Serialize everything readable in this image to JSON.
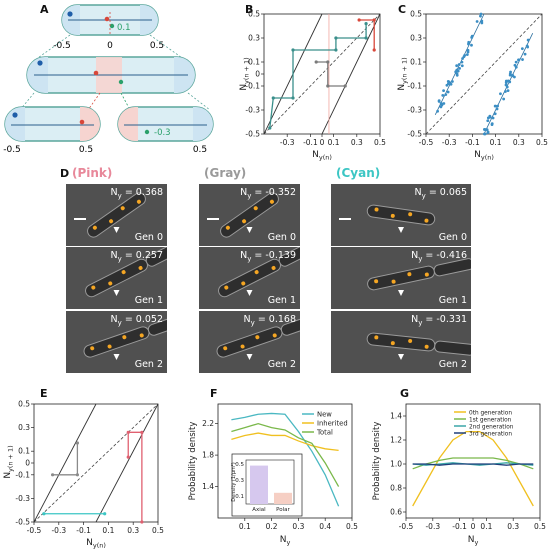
{
  "panel_labels": {
    "A": "A",
    "B": "B",
    "C": "C",
    "D": "D",
    "E": "E",
    "F": "F",
    "G": "G"
  },
  "panel_A": {
    "top_ticks": [
      "-0.5",
      "0",
      "0.5"
    ],
    "top_value": "0.1",
    "bottom_left_ticks": [
      "-0.5",
      "0.5"
    ],
    "bottom_right_ticks": [
      "0.5"
    ],
    "bottom_right_value": "-0.3",
    "colors": {
      "cell_fill": "#dbeef4",
      "cell_edge": "#5aa69b",
      "pole_blue": "#cde4f2",
      "pole_red": "#f6d4d0",
      "mark_blue": "#1f5ea8",
      "mark_red": "#d8473a",
      "mark_green": "#2aa06a"
    }
  },
  "chart_B": {
    "type": "line",
    "xlabel_main": "N",
    "xlabel_sub": "y(n)",
    "ylabel_main": "N",
    "ylabel_sub": "y(n + 1)",
    "xlim": [
      -0.5,
      0.5
    ],
    "ylim": [
      -0.5,
      0.5
    ],
    "x_ticks": [
      "-0.3",
      "-0.1",
      "0",
      "0.1",
      "0.3",
      "0.5"
    ],
    "y_ticks": [
      "-0.5",
      "-0.3",
      "-0.1",
      "0",
      "0.1",
      "0.3",
      "0.5"
    ],
    "series": [
      {
        "color": "#3a8f8b",
        "points": [
          [
            -0.45,
            -0.45
          ],
          [
            -0.42,
            -0.2
          ],
          [
            -0.25,
            -0.2
          ],
          [
            -0.25,
            0.2
          ],
          [
            0.12,
            0.2
          ],
          [
            0.12,
            0.3
          ],
          [
            0.38,
            0.3
          ],
          [
            0.38,
            0.42
          ]
        ]
      },
      {
        "color": "#d8473a",
        "points": [
          [
            0.32,
            0.45
          ],
          [
            0.45,
            0.45
          ],
          [
            0.45,
            0.2
          ]
        ]
      },
      {
        "color": "#7a7a7a",
        "points": [
          [
            -0.05,
            0.1
          ],
          [
            0.05,
            0.1
          ],
          [
            0.05,
            -0.1
          ],
          [
            0.2,
            -0.1
          ]
        ]
      }
    ]
  },
  "chart_C": {
    "type": "scatter",
    "xlabel_main": "N",
    "xlabel_sub": "y(n)",
    "ylabel_main": "N",
    "ylabel_sub": "y(n + 1)",
    "xlim": [
      -0.5,
      0.5
    ],
    "ylim": [
      -0.5,
      0.5
    ],
    "x_ticks": [
      "-0.5",
      "-0.3",
      "-0.1",
      "0.1",
      "0.3",
      "0.5"
    ],
    "y_ticks": [
      "-0.5",
      "-0.3",
      "-0.1",
      "0.1",
      "0.3",
      "0.5"
    ],
    "color": "#3b8ec4",
    "clusters": [
      {
        "x_from": -0.42,
        "x_to": 0.0,
        "slope": 2,
        "offset": 0.5,
        "n": 45
      },
      {
        "x_from": 0.0,
        "x_to": 0.42,
        "slope": 2,
        "offset": -0.5,
        "n": 45
      }
    ]
  },
  "panel_D": {
    "headers": [
      {
        "text": "(Pink)",
        "color": "#e8889a"
      },
      {
        "text": "(Gray)",
        "color": "#9a9a9a"
      },
      {
        "text": "(Cyan)",
        "color": "#3cc6c4"
      }
    ],
    "columns": [
      {
        "rows": [
          {
            "ny": "N",
            "sub": "y",
            "val": " = 0.368",
            "gen": "Gen 0"
          },
          {
            "ny": "N",
            "sub": "y",
            "val": " = 0.257",
            "gen": "Gen 1"
          },
          {
            "ny": "N",
            "sub": "y",
            "val": " = 0.052",
            "gen": "Gen 2"
          }
        ]
      },
      {
        "rows": [
          {
            "ny": "N",
            "sub": "y",
            "val": " = -0.352",
            "gen": "Gen 0"
          },
          {
            "ny": "N",
            "sub": "y",
            "val": " = -0.139",
            "gen": "Gen 1"
          },
          {
            "ny": "N",
            "sub": "y",
            "val": " = 0.168",
            "gen": "Gen 2"
          }
        ]
      },
      {
        "rows": [
          {
            "ny": "N",
            "sub": "y",
            "val": " = 0.065",
            "gen": "Gen 0"
          },
          {
            "ny": "N",
            "sub": "y",
            "val": " = -0.416",
            "gen": "Gen 1"
          },
          {
            "ny": "N",
            "sub": "y",
            "val": " = -0.331",
            "gen": "Gen 2"
          }
        ]
      }
    ]
  },
  "chart_E": {
    "type": "line",
    "xlabel_main": "N",
    "xlabel_sub": "y(n)",
    "ylabel_main": "N",
    "ylabel_sub": "y(n + 1)",
    "xlim": [
      -0.5,
      0.5
    ],
    "ylim": [
      -0.5,
      0.5
    ],
    "x_ticks": [
      "-0.5",
      "-0.3",
      "-0.1",
      "0.1",
      "0.3",
      "0.5"
    ],
    "y_ticks": [
      "-0.5",
      "-0.3",
      "-0.1",
      "0",
      "0.1",
      "0.3",
      "0.5"
    ],
    "series": [
      {
        "color": "#8a8a8a",
        "points": [
          [
            -0.35,
            -0.1
          ],
          [
            -0.15,
            -0.1
          ],
          [
            -0.15,
            0.17
          ]
        ]
      },
      {
        "color": "#e06070",
        "points": [
          [
            0.26,
            0.05
          ],
          [
            0.26,
            0.26
          ],
          [
            0.37,
            0.26
          ],
          [
            0.37,
            -0.5
          ]
        ]
      },
      {
        "color": "#3cc6c4",
        "points": [
          [
            -0.42,
            -0.43
          ],
          [
            0.07,
            -0.43
          ]
        ]
      }
    ]
  },
  "chart_F": {
    "type": "line",
    "xlabel": "N",
    "xlabel_sub": "y",
    "ylabel": "Probability density",
    "xlim": [
      0,
      0.5
    ],
    "ylim": [
      1.0,
      2.45
    ],
    "x_ticks": [
      "0.1",
      "0.2",
      "0.3",
      "0.4",
      "0.5"
    ],
    "y_ticks": [
      "1.4",
      "1.8",
      "2.2"
    ],
    "categories": [
      0.05,
      0.1,
      0.15,
      0.2,
      0.25,
      0.3,
      0.35,
      0.4,
      0.45
    ],
    "series": [
      {
        "name": "New",
        "color": "#4ab8c2",
        "values": [
          2.25,
          2.28,
          2.32,
          2.33,
          2.32,
          2.1,
          1.85,
          1.55,
          1.15
        ]
      },
      {
        "name": "Inherited",
        "color": "#f0c020",
        "values": [
          2.0,
          2.05,
          2.08,
          2.05,
          2.05,
          1.98,
          1.92,
          1.88,
          1.86
        ]
      },
      {
        "name": "Total",
        "color": "#7ab84a",
        "values": [
          2.1,
          2.15,
          2.2,
          2.15,
          2.12,
          2.02,
          1.95,
          1.7,
          1.4
        ]
      }
    ],
    "inset": {
      "type": "bar",
      "ylabel": "Density (1/μm²)",
      "categories": [
        "Axial",
        "Polar"
      ],
      "values": [
        0.48,
        0.14
      ],
      "ylim": [
        0,
        0.55
      ],
      "y_ticks": [
        "0.1",
        "0.3",
        "0.5"
      ],
      "colors": [
        "#d6c8ee",
        "#f6cfc4"
      ]
    }
  },
  "chart_G": {
    "type": "line",
    "xlabel": "N",
    "xlabel_sub": "y",
    "ylabel": "Probability density",
    "xlim": [
      -0.5,
      0.5
    ],
    "ylim": [
      0.55,
      1.5
    ],
    "x_ticks": [
      "-0.5",
      "-0.3",
      "-0.1",
      "0",
      "0.1",
      "0.3",
      "0.5"
    ],
    "y_ticks": [
      "0.6",
      "0.8",
      "1.0",
      "1.2",
      "1.4"
    ],
    "categories": [
      -0.45,
      -0.35,
      -0.25,
      -0.15,
      -0.05,
      0.05,
      0.15,
      0.25,
      0.35,
      0.45
    ],
    "series": [
      {
        "name": "0th generation",
        "color": "#f0c020",
        "values": [
          0.65,
          0.85,
          1.05,
          1.2,
          1.27,
          1.27,
          1.2,
          1.05,
          0.85,
          0.65
        ]
      },
      {
        "name": "1st generation",
        "color": "#7ab84a",
        "values": [
          0.96,
          1.0,
          1.03,
          1.05,
          1.05,
          1.05,
          1.05,
          1.03,
          1.0,
          0.96
        ]
      },
      {
        "name": "2nd generation",
        "color": "#3aa6a8",
        "values": [
          1.0,
          0.99,
          1.0,
          1.01,
          1.0,
          0.99,
          1.0,
          1.01,
          1.0,
          0.99
        ]
      },
      {
        "name": "3rd generation",
        "color": "#1f3f7a",
        "values": [
          1.0,
          1.0,
          0.99,
          1.0,
          1.0,
          1.0,
          1.0,
          0.99,
          1.0,
          1.0
        ]
      }
    ]
  }
}
